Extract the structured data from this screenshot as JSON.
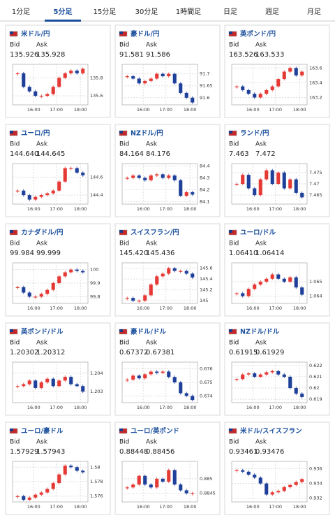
{
  "tabs": [
    "1分足",
    "5分足",
    "15分足",
    "30分足",
    "1時間足",
    "日足",
    "週足",
    "月足"
  ],
  "active_tab": 1,
  "labels": {
    "bid": "Bid",
    "ask": "Ask"
  },
  "time_labels": [
    "16:00",
    "17:00",
    "18:00"
  ],
  "panels": [
    {
      "title": "米ドル/円",
      "bid": "135.926",
      "ask": "135.928",
      "ylim": [
        135.5,
        135.95
      ],
      "yticks": [
        135.8,
        135.6
      ],
      "prices": [
        135.85,
        135.7,
        135.65,
        135.6,
        135.6,
        135.62,
        135.7,
        135.8,
        135.85,
        135.88,
        135.85,
        135.9
      ]
    },
    {
      "title": "豪ドル/円",
      "bid": "91.581",
      "ask": "91.586",
      "ylim": [
        91.57,
        91.74
      ],
      "yticks": [
        91.7,
        91.65,
        91.6
      ],
      "prices": [
        91.69,
        91.68,
        91.66,
        91.67,
        91.68,
        91.7,
        91.69,
        91.7,
        91.66,
        91.62,
        91.6,
        91.58
      ]
    },
    {
      "title": "英ポンド/円",
      "bid": "163.526",
      "ask": "163.533",
      "ylim": [
        163.1,
        163.65
      ],
      "yticks": [
        163.6,
        163.4,
        163.2
      ],
      "prices": [
        163.35,
        163.3,
        163.25,
        163.2,
        163.25,
        163.3,
        163.35,
        163.45,
        163.55,
        163.6,
        163.5,
        163.55
      ]
    },
    {
      "title": "ユーロ/円",
      "bid": "144.640",
      "ask": "144.645",
      "ylim": [
        144.3,
        144.75
      ],
      "yticks": [
        144.6,
        144.4
      ],
      "prices": [
        144.45,
        144.4,
        144.35,
        144.38,
        144.4,
        144.42,
        144.45,
        144.55,
        144.7,
        144.7,
        144.65,
        144.62
      ]
    },
    {
      "title": "NZドル/円",
      "bid": "84.164",
      "ask": "84.176",
      "ylim": [
        84.08,
        84.42
      ],
      "yticks": [
        84.4,
        84.3,
        84.2,
        84.1
      ],
      "prices": [
        84.3,
        84.32,
        84.3,
        84.28,
        84.32,
        84.33,
        84.3,
        84.32,
        84.28,
        84.15,
        84.18,
        84.16
      ]
    },
    {
      "title": "ランド/円",
      "bid": "7.463",
      "ask": "7.472",
      "ylim": [
        7.461,
        7.479
      ],
      "yticks": [
        7.475,
        7.47,
        7.465
      ],
      "prices": [
        7.47,
        7.474,
        7.468,
        7.465,
        7.472,
        7.476,
        7.47,
        7.475,
        7.468,
        7.472,
        7.466,
        7.464
      ]
    },
    {
      "title": "カナダドル/円",
      "bid": "99.984",
      "ask": "99.999",
      "ylim": [
        99.75,
        100.05
      ],
      "yticks": [
        100,
        99.9,
        99.8
      ],
      "prices": [
        99.87,
        99.83,
        99.8,
        99.8,
        99.82,
        99.85,
        99.9,
        99.95,
        99.98,
        100.0,
        99.99,
        99.98
      ]
    },
    {
      "title": "スイスフラン/円",
      "bid": "145.420",
      "ask": "145.436",
      "ylim": [
        144.95,
        145.7
      ],
      "yticks": [
        145.6,
        145.4,
        145.2,
        145
      ],
      "prices": [
        145.05,
        145.0,
        145.0,
        145.1,
        145.3,
        145.45,
        145.5,
        145.6,
        145.55,
        145.55,
        145.5,
        145.43
      ]
    },
    {
      "title": "ユーロ/ドル",
      "bid": "1.06410",
      "ask": "1.06414",
      "ylim": [
        1.0635,
        1.0663
      ],
      "yticks": [
        1.065,
        1.064
      ],
      "prices": [
        1.0642,
        1.064,
        1.0645,
        1.0648,
        1.065,
        1.0652,
        1.0655,
        1.0652,
        1.065,
        1.0653,
        1.0646,
        1.0641
      ]
    },
    {
      "title": "英ポンド/ドル",
      "bid": "1.20302",
      "ask": "1.20312",
      "ylim": [
        1.2024,
        1.2046
      ],
      "yticks": [
        1.204,
        1.203
      ],
      "prices": [
        1.2033,
        1.2034,
        1.2036,
        1.2032,
        1.2035,
        1.2037,
        1.2033,
        1.2036,
        1.2038,
        1.2034,
        1.2033,
        1.203
      ]
    },
    {
      "title": "豪ドル/ドル",
      "bid": "0.67372",
      "ask": "0.67381",
      "ylim": [
        0.6735,
        0.6765
      ],
      "yticks": [
        0.676,
        0.675,
        0.674
      ],
      "prices": [
        0.6752,
        0.6755,
        0.6753,
        0.6756,
        0.6758,
        0.6757,
        0.6758,
        0.6754,
        0.675,
        0.6742,
        0.674,
        0.6737
      ]
    },
    {
      "title": "NZドル/ドル",
      "bid": "0.61915",
      "ask": "0.61929",
      "ylim": [
        0.6187,
        0.6223
      ],
      "yticks": [
        0.622,
        0.621,
        0.62,
        0.619
      ],
      "prices": [
        0.6208,
        0.6212,
        0.6213,
        0.621,
        0.6212,
        0.6214,
        0.6215,
        0.6212,
        0.621,
        0.62,
        0.6195,
        0.6192
      ]
    },
    {
      "title": "ユーロ/豪ドル",
      "bid": "1.57929",
      "ask": "1.57943",
      "ylim": [
        1.5752,
        1.5808
      ],
      "yticks": [
        1.58,
        1.578,
        1.576
      ],
      "prices": [
        1.576,
        1.5755,
        1.5758,
        1.5762,
        1.5765,
        1.577,
        1.5778,
        1.579,
        1.5802,
        1.58,
        1.5795,
        1.5793
      ]
    },
    {
      "title": "ユーロ/英ポンド",
      "bid": "0.88448",
      "ask": "0.88456",
      "ylim": [
        0.8842,
        0.8856
      ],
      "yticks": [
        0.885,
        0.8845
      ],
      "prices": [
        0.8847,
        0.8848,
        0.8851,
        0.8848,
        0.8847,
        0.885,
        0.8849,
        0.8853,
        0.8848,
        0.8846,
        0.8845,
        0.8845
      ]
    },
    {
      "title": "米ドル/スイスフラン",
      "bid": "0.93461",
      "ask": "0.93476",
      "ylim": [
        0.9315,
        0.937
      ],
      "yticks": [
        0.936,
        0.934,
        0.932
      ],
      "prices": [
        0.9358,
        0.9356,
        0.9352,
        0.9348,
        0.934,
        0.9325,
        0.9328,
        0.933,
        0.9335,
        0.9338,
        0.9342,
        0.9346
      ]
    }
  ]
}
